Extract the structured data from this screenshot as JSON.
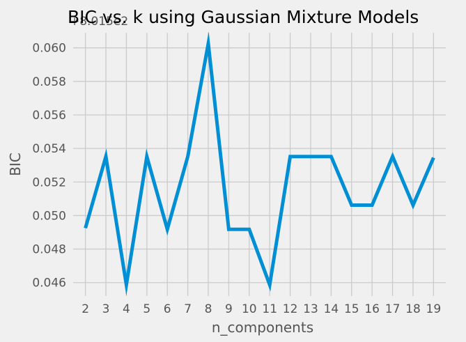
{
  "chart_data": {
    "type": "line",
    "title": "BIC vs. k using Gaussian Mixture Models",
    "xlabel": "n_components",
    "ylabel": "BIC",
    "offset_text": "+8.015e2",
    "x": [
      2,
      3,
      4,
      5,
      6,
      7,
      8,
      9,
      10,
      11,
      12,
      13,
      14,
      15,
      16,
      17,
      18,
      19
    ],
    "series": [
      {
        "values": [
          0.04925,
          0.05352,
          0.04587,
          0.05352,
          0.04918,
          0.05352,
          0.06025,
          0.04918,
          0.04918,
          0.04587,
          0.05352,
          0.05352,
          0.05352,
          0.05062,
          0.05062,
          0.05352,
          0.05062,
          0.05345
        ]
      }
    ],
    "ylim": [
      0.0452,
      0.0609
    ],
    "xlim": [
      1.4,
      19.6
    ],
    "y_ticks": [
      "0.046",
      "0.048",
      "0.050",
      "0.052",
      "0.054",
      "0.056",
      "0.058",
      "0.060"
    ],
    "x_ticks": [
      "2",
      "3",
      "4",
      "5",
      "6",
      "7",
      "8",
      "9",
      "10",
      "11",
      "12",
      "13",
      "14",
      "15",
      "16",
      "17",
      "18",
      "19"
    ],
    "grid": true,
    "line_color": "#008fd5",
    "grid_color": "#cbcbcb",
    "background_color": "#f0f0f0",
    "text_color": "#555555",
    "title_color": "#000000"
  }
}
